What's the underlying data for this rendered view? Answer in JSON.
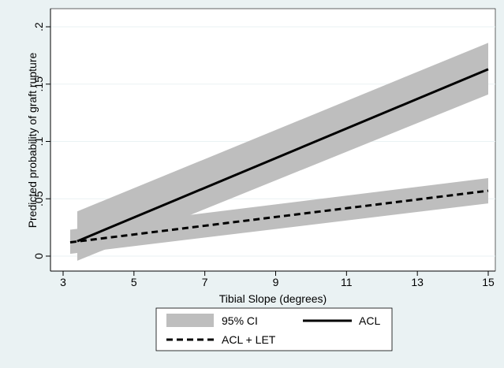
{
  "chart_data": {
    "type": "line",
    "xlabel": "Tibial Slope (degrees)",
    "ylabel": "Predicted probability of graft rupture",
    "xlim": [
      3,
      15
    ],
    "ylim": [
      0,
      0.2
    ],
    "x_ticks": [
      3,
      5,
      7,
      9,
      11,
      13,
      15
    ],
    "x_tick_labels": [
      "3",
      "5",
      "7",
      "9",
      "11",
      "13",
      "15"
    ],
    "y_ticks": [
      0,
      0.05,
      0.1,
      0.15,
      0.2
    ],
    "y_tick_labels": [
      "0",
      ".05",
      ".1",
      ".15",
      ".2"
    ],
    "grid": "horizontal",
    "legend_position": "bottom",
    "legend": [
      {
        "label": "95% CI",
        "style": "band"
      },
      {
        "label": "ACL",
        "style": "solid"
      },
      {
        "label": "ACL + LET",
        "style": "dashed"
      }
    ],
    "series": [
      {
        "name": "ACL",
        "style": "solid",
        "x": [
          3.4,
          15
        ],
        "y": [
          0.013,
          0.163
        ],
        "ci_lower": [
          -0.004,
          0.141
        ],
        "ci_upper": [
          0.039,
          0.186
        ]
      },
      {
        "name": "ACL + LET",
        "style": "dashed",
        "x": [
          3.2,
          15
        ],
        "y": [
          0.012,
          0.057
        ],
        "ci_lower": [
          0.002,
          0.046
        ],
        "ci_upper": [
          0.023,
          0.068
        ]
      }
    ],
    "colors": {
      "ci_band": "#bebebe",
      "line": "#000000",
      "plot_bg": "#ffffff",
      "outer_bg": "#eaf2f3",
      "grid": "#eaf2f3"
    }
  }
}
